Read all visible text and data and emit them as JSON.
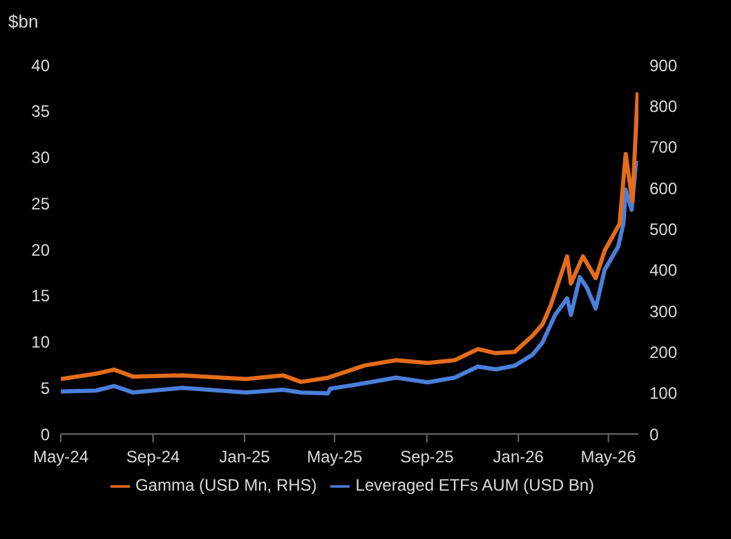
{
  "chart_data": {
    "type": "line",
    "ylabel": "$bn",
    "xlim": [
      "2024-05-01",
      "2026-06-10"
    ],
    "xticks": [
      {
        "value": "2024-05-01",
        "label": "May-24"
      },
      {
        "value": "2024-09-01",
        "label": "Sep-24"
      },
      {
        "value": "2025-01-01",
        "label": "Jan-25"
      },
      {
        "value": "2025-05-01",
        "label": "May-25"
      },
      {
        "value": "2025-09-01",
        "label": "Sep-25"
      },
      {
        "value": "2026-01-01",
        "label": "Jan-26"
      },
      {
        "value": "2026-05-01",
        "label": "May-26"
      }
    ],
    "ylim": [
      0,
      40
    ],
    "yticks": [
      0,
      5,
      10,
      15,
      20,
      25,
      30,
      35,
      40
    ],
    "y2lim": [
      0,
      900
    ],
    "y2ticks": [
      0,
      100,
      200,
      300,
      400,
      500,
      600,
      700,
      800,
      900
    ],
    "grid": false,
    "legend": "bottom",
    "marker": "none",
    "line_style": "solid",
    "series": [
      {
        "name": "Leveraged ETFs AUM (USD Bn)",
        "color": "#4a7fdc",
        "x": [
          "2024-05-01",
          "2024-06-17",
          "2024-07-11",
          "2024-08-05",
          "2024-10-10",
          "2025-01-03",
          "2025-02-21",
          "2025-03-17",
          "2025-04-22",
          "2025-04-25",
          "2025-06-10",
          "2025-07-22",
          "2025-09-02",
          "2025-10-08",
          "2025-11-08",
          "2025-12-02",
          "2025-12-27",
          "2026-01-20",
          "2026-02-02",
          "2026-02-19",
          "2026-03-07",
          "2026-03-12",
          "2026-03-24",
          "2026-04-02",
          "2026-04-14",
          "2026-04-26",
          "2026-05-14",
          "2026-05-21",
          "2026-05-24",
          "2026-06-01",
          "2026-06-07"
        ],
        "values": [
          4.6,
          4.7,
          5.2,
          4.5,
          5.0,
          4.5,
          4.8,
          4.5,
          4.4,
          4.9,
          5.5,
          6.1,
          5.6,
          6.1,
          7.3,
          7.0,
          7.4,
          8.6,
          9.9,
          12.9,
          14.7,
          12.9,
          17.0,
          15.9,
          13.6,
          17.8,
          20.3,
          22.8,
          26.5,
          24.3,
          29.6
        ]
      },
      {
        "name": "Gamma (USD Mn, RHS)",
        "color": "#e46c1a",
        "axis": "y2",
        "x": [
          "2024-05-01",
          "2024-06-17",
          "2024-07-11",
          "2024-08-05",
          "2024-10-10",
          "2025-01-03",
          "2025-02-21",
          "2025-03-17",
          "2025-04-22",
          "2025-06-10",
          "2025-07-22",
          "2025-09-02",
          "2025-10-08",
          "2025-11-08",
          "2025-12-02",
          "2025-12-27",
          "2026-01-20",
          "2026-02-02",
          "2026-02-13",
          "2026-03-07",
          "2026-03-12",
          "2026-03-28",
          "2026-04-14",
          "2026-04-26",
          "2026-05-16",
          "2026-05-24",
          "2026-06-02",
          "2026-06-09"
        ],
        "values": [
          134,
          147,
          157,
          140,
          143,
          134,
          143,
          127,
          137,
          167,
          180,
          173,
          180,
          207,
          197,
          200,
          240,
          267,
          313,
          433,
          367,
          433,
          380,
          447,
          513,
          683,
          567,
          833
        ]
      }
    ]
  }
}
